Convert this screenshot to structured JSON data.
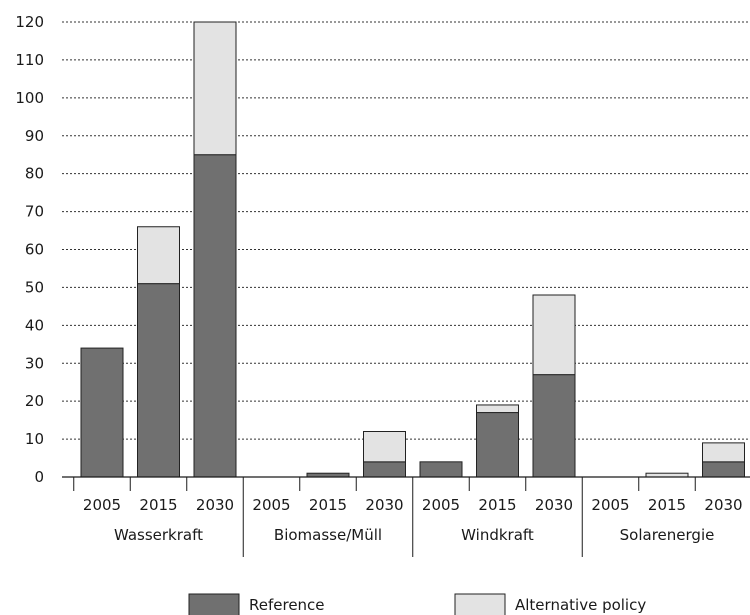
{
  "chart_data": {
    "type": "bar",
    "stacked": true,
    "groups": [
      {
        "name": "Wasserkraft",
        "years": [
          "2005",
          "2015",
          "2030"
        ]
      },
      {
        "name": "Biomasse/Müll",
        "years": [
          "2005",
          "2015",
          "2030"
        ]
      },
      {
        "name": "Windkraft",
        "years": [
          "2005",
          "2015",
          "2030"
        ]
      },
      {
        "name": "Solarenergie",
        "years": [
          "2005",
          "2015",
          "2030"
        ]
      }
    ],
    "series": [
      {
        "name": "Reference",
        "color": "#707070",
        "values": [
          34,
          51,
          85,
          0,
          1,
          4,
          4,
          17,
          27,
          0,
          0,
          4
        ]
      },
      {
        "name": "Alternative policy",
        "color": "#e3e3e3",
        "values": [
          0,
          15,
          35,
          0,
          0,
          8,
          0,
          2,
          21,
          0,
          1,
          5
        ]
      }
    ],
    "ylim": [
      0,
      120
    ],
    "yticks": [
      0,
      10,
      20,
      30,
      40,
      50,
      60,
      70,
      80,
      90,
      100,
      110,
      120
    ],
    "grid": "horizontal-dashed",
    "legend_position": "bottom"
  }
}
